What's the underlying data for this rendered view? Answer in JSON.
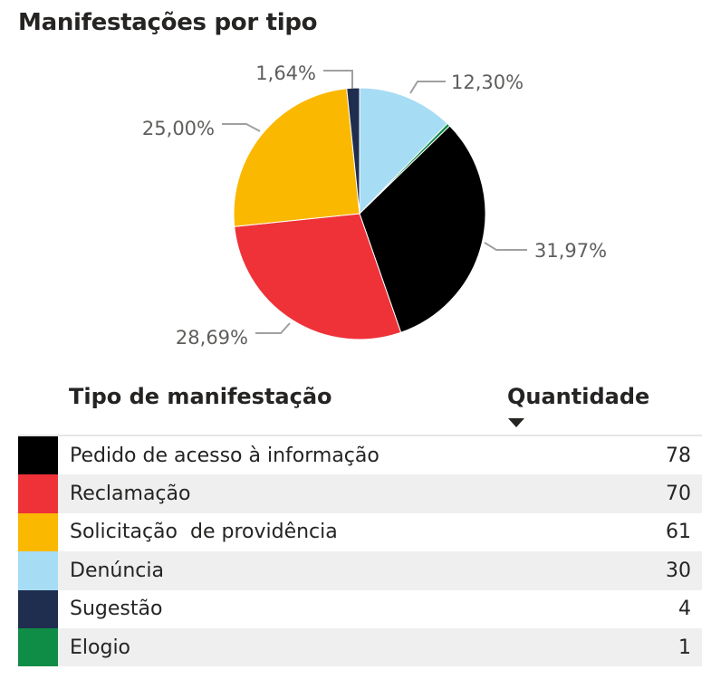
{
  "title": "Manifestações por tipo",
  "chart_data": {
    "type": "pie",
    "title": "Manifestações por tipo",
    "slices": [
      {
        "label": "Pedido de acesso à informação",
        "value": 78,
        "percent_label": "31,97%",
        "color": "#000000"
      },
      {
        "label": "Reclamação",
        "value": 70,
        "percent_label": "28,69%",
        "color": "#EE3238"
      },
      {
        "label": "Solicitação  de providência",
        "value": 61,
        "percent_label": "25,00%",
        "color": "#FBB800"
      },
      {
        "label": "Denúncia",
        "value": 30,
        "percent_label": "12,30%",
        "color": "#A7DCF5"
      },
      {
        "label": "Sugestão",
        "value": 4,
        "percent_label": "1,64%",
        "color": "#1F2D4E"
      },
      {
        "label": "Elogio",
        "value": 1,
        "percent_label": "",
        "color": "#0F8C46"
      }
    ]
  },
  "table": {
    "header_type": "Tipo de manifestação",
    "header_qty": "Quantidade",
    "sort_icon": "sort-descending-icon",
    "rows": [
      {
        "label": "Pedido de acesso à informação",
        "value": "78",
        "color": "#000000"
      },
      {
        "label": "Reclamação",
        "value": "70",
        "color": "#EE3238"
      },
      {
        "label": "Solicitação  de providência",
        "value": "61",
        "color": "#FBB800"
      },
      {
        "label": "Denúncia",
        "value": "30",
        "color": "#A7DCF5"
      },
      {
        "label": "Sugestão",
        "value": "4",
        "color": "#1F2D4E"
      },
      {
        "label": "Elogio",
        "value": "1",
        "color": "#0F8C46"
      }
    ]
  }
}
